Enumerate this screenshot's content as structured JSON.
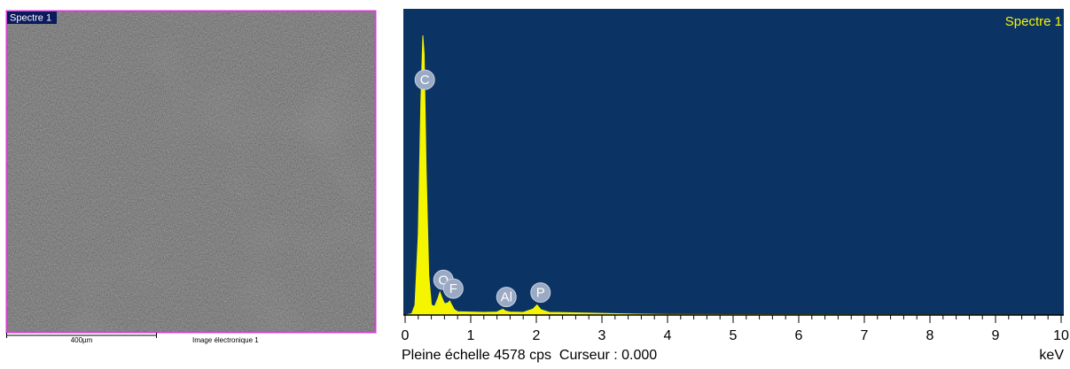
{
  "image_panel": {
    "label": "Spectre 1",
    "scale_bar": "400µm",
    "caption": "Image électronique 1"
  },
  "chart_data": {
    "type": "area",
    "title": "Spectre 1",
    "xlabel": "keV",
    "footer": "Pleine échelle 4578 cps  Curseur : 0.000",
    "color": "#f5f500",
    "background": "#0b3364",
    "x": [
      0,
      0.1,
      0.15,
      0.2,
      0.24,
      0.27,
      0.29,
      0.32,
      0.36,
      0.4,
      0.45,
      0.5,
      0.53,
      0.56,
      0.6,
      0.65,
      0.68,
      0.71,
      0.75,
      0.8,
      1.0,
      1.2,
      1.4,
      1.45,
      1.49,
      1.53,
      1.6,
      1.8,
      1.95,
      2.01,
      2.07,
      2.2,
      2.5,
      3.0,
      3.5,
      4.0,
      10
    ],
    "values": [
      0,
      20,
      150,
      1200,
      3200,
      4180,
      3900,
      2200,
      600,
      150,
      130,
      250,
      340,
      260,
      170,
      180,
      210,
      150,
      80,
      50,
      45,
      40,
      45,
      70,
      85,
      60,
      45,
      40,
      90,
      150,
      80,
      40,
      35,
      25,
      15,
      8,
      0
    ],
    "peaks": [
      {
        "label": "C",
        "x": 0.3
      },
      {
        "label": "O",
        "x": 0.53
      },
      {
        "label": "F",
        "x": 0.68
      },
      {
        "label": "Al",
        "x": 1.49
      },
      {
        "label": "P",
        "x": 2.01
      }
    ],
    "xlim": [
      0,
      10
    ],
    "xticks": [
      0,
      1,
      2,
      3,
      4,
      5,
      6,
      7,
      8,
      9,
      10
    ],
    "ylim": [
      0,
      4578
    ]
  }
}
